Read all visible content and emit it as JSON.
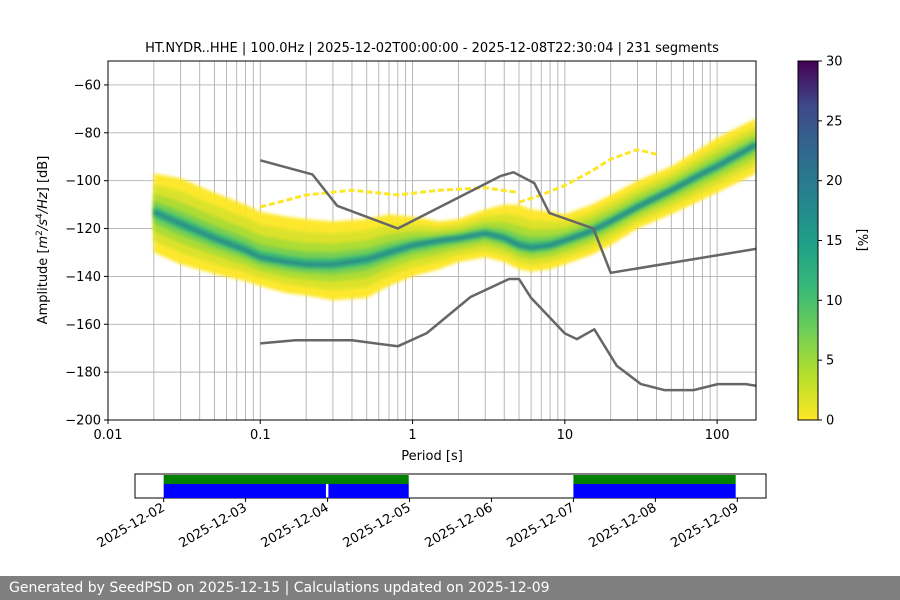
{
  "footer": {
    "text": "Generated by SeedPSD on 2025-12-15 | Calculations updated on 2025-12-09"
  },
  "colors": {
    "noise_model": "#666666",
    "grid": "#b0b0b0",
    "availability_top": "#008000",
    "availability_bottom": "#0000ff"
  },
  "chart_data": [
    {
      "type": "heatmap",
      "subtype": "probabilistic-psd",
      "title": "HT.NYDR..HHE | 100.0Hz | 2025-12-02T00:00:00 - 2025-12-08T22:30:04 | 231 segments",
      "xlabel": "Period [s]",
      "ylabel": "Amplitude [m²/s⁴/Hz] [dB]",
      "xscale": "log",
      "xlim": [
        0.01,
        180
      ],
      "ylim": [
        -200,
        -50
      ],
      "xticks": [
        {
          "value": 0.01,
          "label": "0.01"
        },
        {
          "value": 0.1,
          "label": "0.1"
        },
        {
          "value": 1,
          "label": "1"
        },
        {
          "value": 10,
          "label": "10"
        },
        {
          "value": 100,
          "label": "100"
        }
      ],
      "yticks": [
        {
          "value": -60,
          "label": "−60"
        },
        {
          "value": -80,
          "label": "−80"
        },
        {
          "value": -100,
          "label": "−100"
        },
        {
          "value": -120,
          "label": "−120"
        },
        {
          "value": -140,
          "label": "−140"
        },
        {
          "value": -160,
          "label": "−160"
        },
        {
          "value": -180,
          "label": "−180"
        },
        {
          "value": -200,
          "label": "−200"
        }
      ],
      "grid": true,
      "psd_band": {
        "period": [
          0.02,
          0.03,
          0.05,
          0.08,
          0.1,
          0.15,
          0.2,
          0.3,
          0.5,
          0.7,
          1,
          1.5,
          2,
          3,
          4,
          5,
          6,
          8,
          10,
          15,
          20,
          30,
          50,
          80,
          100,
          180
        ],
        "mode": [
          -113,
          -118,
          -124,
          -129,
          -132,
          -134,
          -135,
          -135,
          -133,
          -130,
          -127,
          -125,
          -124,
          -122,
          -124,
          -127,
          -128,
          -127,
          -125,
          -121,
          -117,
          -111,
          -104,
          -97,
          -94,
          -85
        ],
        "upper": [
          -97,
          -99,
          -105,
          -110,
          -113,
          -115,
          -116,
          -117,
          -116,
          -114,
          -115,
          -117,
          -116,
          -112,
          -110,
          -110,
          -112,
          -113,
          -114,
          -110,
          -106,
          -100,
          -94,
          -86,
          -82,
          -74
        ],
        "lower": [
          -130,
          -135,
          -139,
          -142,
          -144,
          -147,
          -148,
          -150,
          -149,
          -144,
          -140,
          -137,
          -134,
          -132,
          -134,
          -137,
          -138,
          -137,
          -135,
          -131,
          -127,
          -120,
          -114,
          -108,
          -105,
          -97
        ],
        "outliers": [
          {
            "period": [
              0.1,
              0.2,
              0.4,
              0.8,
              1.5,
              3,
              5
            ],
            "value": [
              -111,
              -106,
              -104,
              -106,
              -104,
              -103,
              -105
            ]
          },
          {
            "period": [
              5,
              7,
              10,
              15,
              20,
              30,
              40
            ],
            "value": [
              -109,
              -106,
              -102,
              -96,
              -91,
              -87,
              -89
            ]
          }
        ]
      },
      "noise_models": {
        "high": {
          "period": [
            0.1,
            0.22,
            0.32,
            0.8,
            3.8,
            4.6,
            6.3,
            7.9,
            15.4,
            20,
            180
          ],
          "value": [
            -91.5,
            -97.4,
            -110.5,
            -120,
            -98,
            -96.5,
            -101,
            -113.5,
            -120,
            -138.5,
            -128.5
          ]
        },
        "low": {
          "period": [
            0.1,
            0.17,
            0.4,
            0.8,
            1.24,
            2.4,
            4.3,
            5,
            6,
            10,
            12,
            15.6,
            21.9,
            31.6,
            45,
            70,
            101,
            154,
            180
          ],
          "value": [
            -168,
            -166.7,
            -166.7,
            -169.2,
            -163.7,
            -148.6,
            -141.1,
            -141.1,
            -149,
            -163.8,
            -166.2,
            -162.1,
            -177.3,
            -185,
            -187.5,
            -187.5,
            -185,
            -185,
            -185.7
          ]
        }
      },
      "colorbar": {
        "label": "[%]",
        "range": [
          0,
          30
        ],
        "ticks": [
          "0",
          "5",
          "10",
          "15",
          "20",
          "25",
          "30"
        ]
      }
    },
    {
      "type": "timeline",
      "title": "",
      "date_ticks": [
        "2025-12-02",
        "2025-12-03",
        "2025-12-04",
        "2025-12-05",
        "2025-12-06",
        "2025-12-07",
        "2025-12-08",
        "2025-12-09"
      ],
      "xlim_days": [
        -0.35,
        7.35
      ],
      "top_segments": [
        {
          "start": 0,
          "end": 2.99
        },
        {
          "start": 5,
          "end": 6.98
        }
      ],
      "bottom_segments": [
        {
          "start": 0,
          "end": 1.98
        },
        {
          "start": 2.01,
          "end": 2.99
        },
        {
          "start": 5,
          "end": 6.98
        }
      ]
    }
  ]
}
